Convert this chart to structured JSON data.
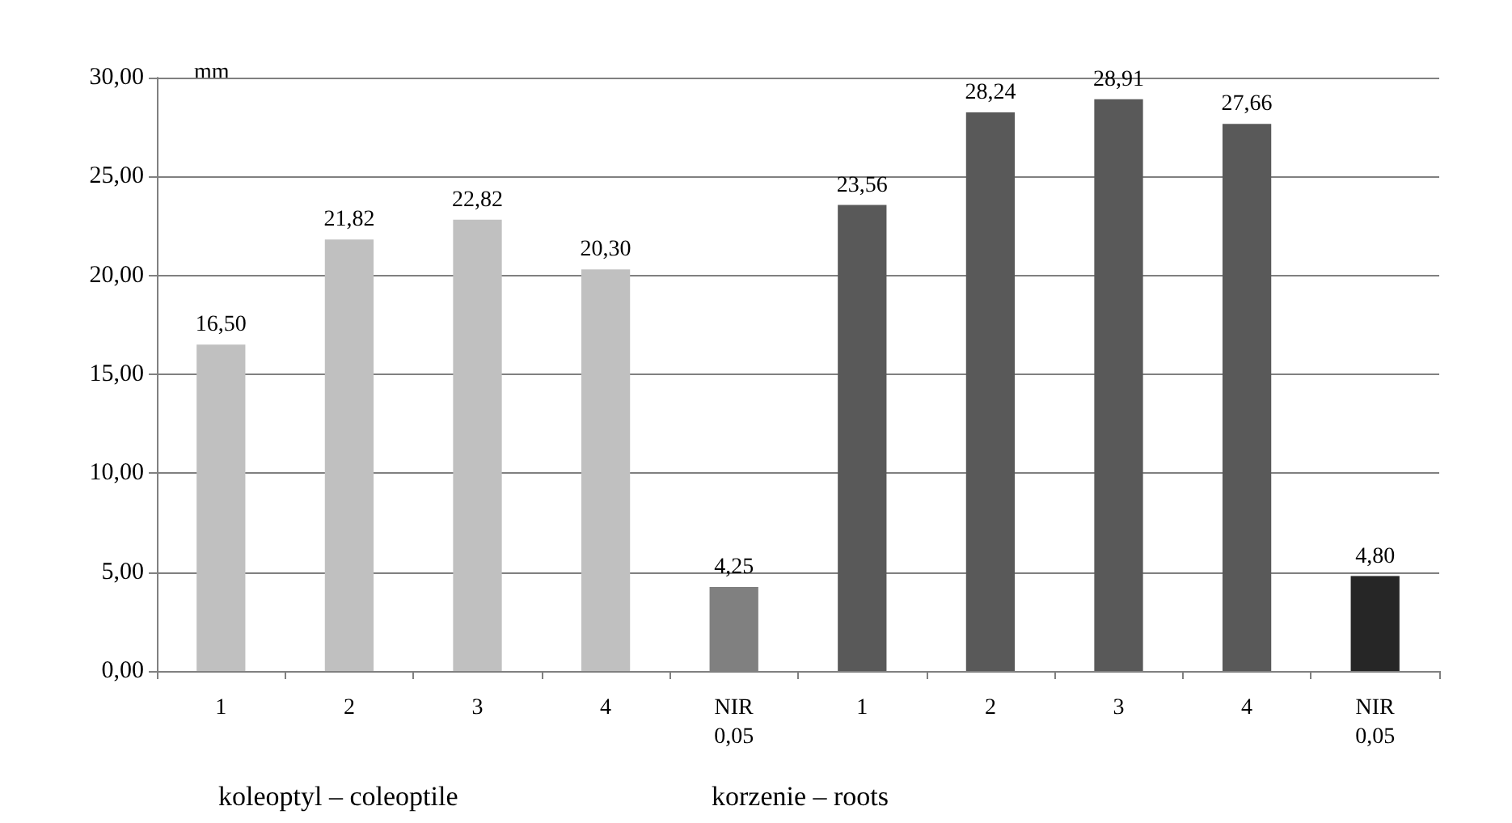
{
  "chart_data": {
    "type": "bar",
    "ylabel": "mm",
    "categories": [
      "1",
      "2",
      "3",
      "4",
      "NIR\n0,05",
      "1",
      "2",
      "3",
      "4",
      "NIR\n0,05"
    ],
    "values": [
      16.5,
      21.82,
      22.82,
      20.3,
      4.25,
      23.56,
      28.24,
      28.91,
      27.66,
      4.8
    ],
    "colors": [
      "#c0c0c0",
      "#c0c0c0",
      "#c0c0c0",
      "#c0c0c0",
      "#808080",
      "#595959",
      "#595959",
      "#595959",
      "#595959",
      "#262626"
    ],
    "value_labels": [
      "16,50",
      "21,82",
      "22,82",
      "20,30",
      "4,25",
      "23,56",
      "28,24",
      "28,91",
      "27,66",
      "4,80"
    ],
    "ylim": [
      0,
      30
    ],
    "yticks": [
      {
        "value": 0,
        "label": "0,00"
      },
      {
        "value": 5,
        "label": "5,00"
      },
      {
        "value": 10,
        "label": "10,00"
      },
      {
        "value": 15,
        "label": "15,00"
      },
      {
        "value": 20,
        "label": "20,00"
      },
      {
        "value": 25,
        "label": "25,00"
      },
      {
        "value": 30,
        "label": "30,00"
      }
    ],
    "grid": "y",
    "annotations": [
      "koleoptyl – coleoptile",
      "korzenie – roots"
    ]
  }
}
